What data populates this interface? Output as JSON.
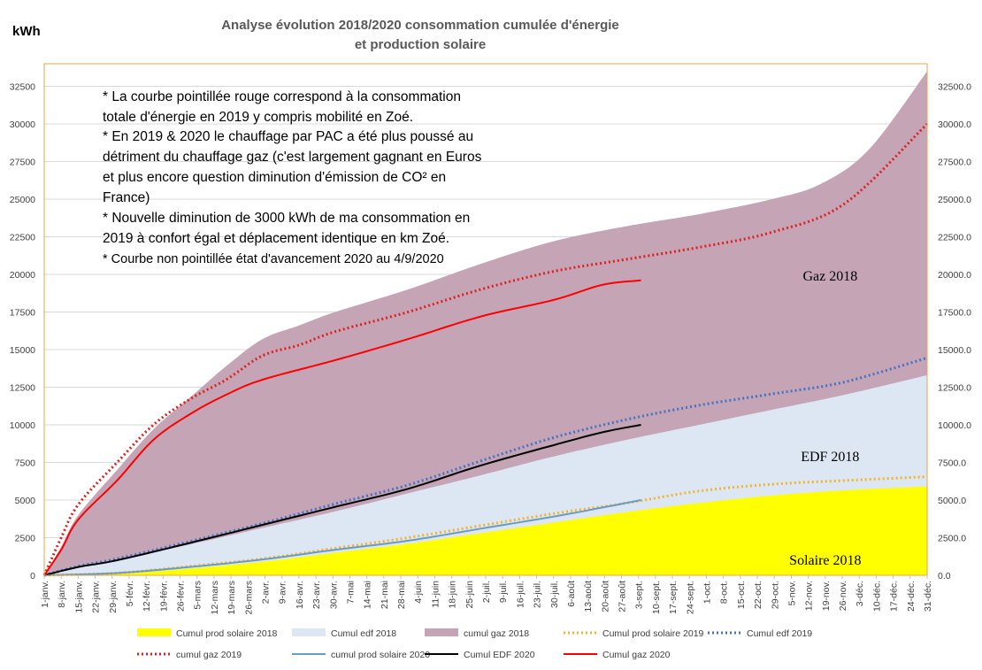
{
  "chart_data": {
    "type": "area",
    "title_lines": [
      "Analyse évolution 2018/2020 consommation cumulée d'énergie",
      "et production solaire"
    ],
    "unit_label": "kWh",
    "ylim": [
      0,
      32500
    ],
    "y_ticks_left": [
      "0",
      "2500",
      "5000",
      "7500",
      "10000",
      "12500",
      "15000",
      "17500",
      "20000",
      "22500",
      "25000",
      "27500",
      "30000",
      "32500"
    ],
    "y_ticks_right": [
      "0.0",
      "2500.0",
      "5000.0",
      "7500.0",
      "10000.0",
      "12500.0",
      "15000.0",
      "17500.0",
      "20000.0",
      "22500.0",
      "25000.0",
      "27500.0",
      "30000.0",
      "32500.0"
    ],
    "grid": "horizontal",
    "x_day_range": [
      0,
      364
    ],
    "x_ticks": [
      "1-janv.",
      "8-janv.",
      "15-janv.",
      "22-janv.",
      "29-janv.",
      "5-févr.",
      "12-févr.",
      "19-févr.",
      "26-févr.",
      "5-mars",
      "12-mars",
      "19-mars",
      "26-mars",
      "2-avr.",
      "9-avr.",
      "16-avr.",
      "23-avr.",
      "30-avr.",
      "7-mai",
      "14-mai",
      "21-mai",
      "28-mai",
      "4-juin",
      "11-juin",
      "18-juin",
      "25-juin",
      "2-juil.",
      "9-juil.",
      "16-juil.",
      "23-juil.",
      "30-juil.",
      "6-août",
      "13-août",
      "20-août",
      "27-août",
      "3-sept.",
      "10-sept.",
      "17-sept.",
      "24-sept.",
      "1-oct.",
      "8-oct.",
      "15-oct.",
      "22-oct.",
      "29-oct.",
      "5-nov.",
      "12-nov.",
      "19-nov.",
      "26-nov.",
      "3-déc.",
      "10-déc.",
      "17-déc.",
      "24-déc.",
      "31-déc."
    ],
    "series": [
      {
        "name": "Cumul prod solaire 2018",
        "kind": "area",
        "color": "#ffff00",
        "points": [
          [
            0,
            0
          ],
          [
            30,
            100
          ],
          [
            60,
            450
          ],
          [
            90,
            900
          ],
          [
            120,
            1500
          ],
          [
            150,
            2100
          ],
          [
            180,
            2800
          ],
          [
            210,
            3500
          ],
          [
            240,
            4200
          ],
          [
            270,
            4800
          ],
          [
            300,
            5300
          ],
          [
            330,
            5650
          ],
          [
            364,
            5900
          ]
        ]
      },
      {
        "name": "Cumul edf 2018",
        "kind": "area",
        "color": "#dde7f3",
        "points": [
          [
            0,
            0
          ],
          [
            14,
            600
          ],
          [
            30,
            1050
          ],
          [
            60,
            2050
          ],
          [
            90,
            3150
          ],
          [
            120,
            4250
          ],
          [
            150,
            5450
          ],
          [
            180,
            6650
          ],
          [
            210,
            7900
          ],
          [
            240,
            9000
          ],
          [
            270,
            10000
          ],
          [
            300,
            11000
          ],
          [
            330,
            12000
          ],
          [
            364,
            13300
          ]
        ]
      },
      {
        "name": "cumul gaz 2018",
        "kind": "area",
        "color": "#c4a4b5",
        "points": [
          [
            0,
            0
          ],
          [
            7,
            1900
          ],
          [
            14,
            4000
          ],
          [
            30,
            7000
          ],
          [
            45,
            9700
          ],
          [
            60,
            11800
          ],
          [
            75,
            13900
          ],
          [
            90,
            15700
          ],
          [
            105,
            16600
          ],
          [
            120,
            17500
          ],
          [
            150,
            19000
          ],
          [
            180,
            20700
          ],
          [
            210,
            22200
          ],
          [
            240,
            23200
          ],
          [
            270,
            24000
          ],
          [
            300,
            25000
          ],
          [
            320,
            26000
          ],
          [
            340,
            28300
          ],
          [
            364,
            33500
          ]
        ]
      },
      {
        "name": "Cumul prod solaire 2019",
        "kind": "line",
        "style": "dotted",
        "color": "#f0b42c",
        "points": [
          [
            0,
            0
          ],
          [
            30,
            150
          ],
          [
            60,
            600
          ],
          [
            90,
            1100
          ],
          [
            120,
            1800
          ],
          [
            150,
            2500
          ],
          [
            180,
            3300
          ],
          [
            210,
            4100
          ],
          [
            240,
            4800
          ],
          [
            270,
            5600
          ],
          [
            300,
            6050
          ],
          [
            330,
            6300
          ],
          [
            364,
            6550
          ]
        ]
      },
      {
        "name": "Cumul edf 2019",
        "kind": "line",
        "style": "dotted",
        "color": "#4472c4",
        "points": [
          [
            0,
            0
          ],
          [
            14,
            600
          ],
          [
            30,
            1100
          ],
          [
            60,
            2250
          ],
          [
            90,
            3450
          ],
          [
            120,
            4750
          ],
          [
            150,
            6000
          ],
          [
            180,
            7600
          ],
          [
            210,
            9150
          ],
          [
            240,
            10350
          ],
          [
            270,
            11300
          ],
          [
            300,
            12050
          ],
          [
            330,
            12850
          ],
          [
            364,
            14450
          ]
        ]
      },
      {
        "name": "cumul gaz 2019",
        "kind": "line",
        "style": "dotted",
        "color": "#e02020",
        "points": [
          [
            0,
            0
          ],
          [
            7,
            2500
          ],
          [
            14,
            4700
          ],
          [
            30,
            7500
          ],
          [
            45,
            10000
          ],
          [
            60,
            11700
          ],
          [
            75,
            13000
          ],
          [
            90,
            14600
          ],
          [
            105,
            15300
          ],
          [
            120,
            16200
          ],
          [
            150,
            17500
          ],
          [
            180,
            19000
          ],
          [
            210,
            20200
          ],
          [
            240,
            21000
          ],
          [
            270,
            21800
          ],
          [
            300,
            22800
          ],
          [
            330,
            24700
          ],
          [
            364,
            30000
          ]
        ]
      },
      {
        "name": "cumul prod solaire 2020",
        "kind": "line",
        "style": "solid",
        "color": "#6a9bc3",
        "points": [
          [
            0,
            0
          ],
          [
            30,
            150
          ],
          [
            60,
            550
          ],
          [
            90,
            1050
          ],
          [
            120,
            1700
          ],
          [
            150,
            2300
          ],
          [
            180,
            3100
          ],
          [
            210,
            3900
          ],
          [
            230,
            4500
          ],
          [
            246,
            5000
          ]
        ]
      },
      {
        "name": "Cumul EDF 2020",
        "kind": "line",
        "style": "solid",
        "color": "#000000",
        "points": [
          [
            0,
            0
          ],
          [
            14,
            550
          ],
          [
            30,
            1000
          ],
          [
            60,
            2150
          ],
          [
            90,
            3350
          ],
          [
            120,
            4550
          ],
          [
            150,
            5750
          ],
          [
            180,
            7300
          ],
          [
            210,
            8650
          ],
          [
            230,
            9500
          ],
          [
            246,
            10000
          ]
        ]
      },
      {
        "name": "Cumul gaz 2020",
        "kind": "line",
        "style": "solid",
        "color": "#ff0000",
        "points": [
          [
            0,
            0
          ],
          [
            7,
            1700
          ],
          [
            14,
            3700
          ],
          [
            30,
            6300
          ],
          [
            45,
            9000
          ],
          [
            60,
            10700
          ],
          [
            75,
            12000
          ],
          [
            90,
            13000
          ],
          [
            120,
            14300
          ],
          [
            150,
            15700
          ],
          [
            180,
            17200
          ],
          [
            210,
            18300
          ],
          [
            230,
            19300
          ],
          [
            246,
            19600
          ]
        ]
      }
    ],
    "area_labels": [
      {
        "text": "Gaz 2018",
        "day": 324,
        "value": 19600
      },
      {
        "text": "EDF 2018",
        "day": 324,
        "value": 7600
      },
      {
        "text": "Solaire 2018",
        "day": 322,
        "value": 700
      }
    ],
    "notes": [
      "* La courbe pointillée rouge correspond à la consommation",
      "totale d'énergie en 2019 y compris mobilité en Zoé.",
      "* En 2019 & 2020 le chauffage par PAC a été plus poussé au",
      "détriment du chauffage gaz (c'est largement gagnant en Euros",
      "et plus encore question diminution d'émission de CO² en",
      "France)",
      "* Nouvelle diminution de 3000 kWh de ma consommation en",
      "2019 à confort égal et déplacement identique en km Zoé.",
      "* Courbe non pointillée état d'avancement 2020 au 4/9/2020"
    ],
    "legend": [
      {
        "label": "Cumul prod solaire 2018",
        "kind": "box",
        "color": "#ffff00"
      },
      {
        "label": "Cumul edf 2018",
        "kind": "box",
        "color": "#dde7f3"
      },
      {
        "label": "cumul gaz 2018",
        "kind": "box",
        "color": "#c4a4b5"
      },
      {
        "label": "Cumul prod solaire 2019",
        "kind": "dotted",
        "color": "#f0b42c"
      },
      {
        "label": "Cumul edf 2019",
        "kind": "dotted",
        "color": "#4472c4"
      },
      {
        "label": "cumul gaz 2019",
        "kind": "dotted",
        "color": "#e02020"
      },
      {
        "label": "cumul prod solaire 2020",
        "kind": "solid",
        "color": "#6a9bc3"
      },
      {
        "label": "Cumul EDF 2020",
        "kind": "solid",
        "color": "#000000"
      },
      {
        "label": "Cumul gaz 2020",
        "kind": "solid",
        "color": "#ff0000"
      }
    ]
  }
}
